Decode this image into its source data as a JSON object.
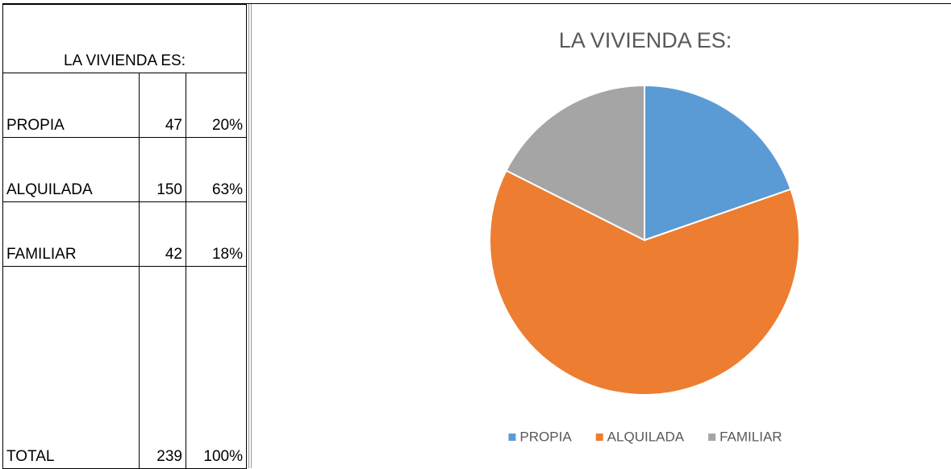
{
  "table": {
    "title": "LA VIVIENDA ES:",
    "rows": [
      [
        "PROPIA",
        "47",
        "20%"
      ],
      [
        "ALQUILADA",
        "150",
        "63%"
      ],
      [
        "FAMILIAR",
        "42",
        "18%"
      ],
      [
        "TOTAL",
        "239",
        "100%"
      ]
    ]
  },
  "chart_data": {
    "type": "pie",
    "title": "LA VIVIENDA ES:",
    "categories": [
      "PROPIA",
      "ALQUILADA",
      "FAMILIAR"
    ],
    "values": [
      47,
      150,
      42
    ],
    "colors": [
      "#5b9bd5",
      "#ed7d31",
      "#a5a5a5"
    ],
    "legend": "bottom"
  }
}
